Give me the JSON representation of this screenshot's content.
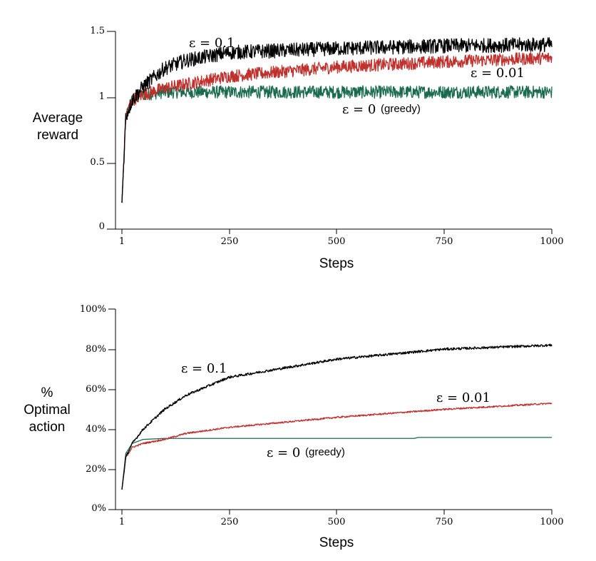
{
  "chart_data": [
    {
      "type": "line",
      "xlabel": "Steps",
      "ylabel": [
        "Average",
        "reward"
      ],
      "xlim": [
        1,
        1000
      ],
      "ylim": [
        0,
        1.5
      ],
      "xticks": [
        1,
        250,
        500,
        750,
        1000
      ],
      "xtick_labels": [
        "1",
        "250",
        "500",
        "750",
        "1000"
      ],
      "yticks": [
        0,
        0.5,
        1,
        1.5
      ],
      "ytick_labels": [
        "0",
        "0.5",
        "1",
        "1.5"
      ],
      "grid": false,
      "series": [
        {
          "name": "ε = 0",
          "suffix": "(greedy)",
          "color": "#1a6b4e",
          "x": [
            1,
            10,
            25,
            50,
            100,
            150,
            250,
            500,
            750,
            1000
          ],
          "y": [
            0.2,
            0.85,
            0.98,
            1.02,
            1.04,
            1.04,
            1.04,
            1.04,
            1.04,
            1.04
          ],
          "noise": 0.022
        },
        {
          "name": "ε = 0.01",
          "color": "#c0302c",
          "x": [
            1,
            10,
            25,
            50,
            100,
            150,
            250,
            500,
            750,
            1000
          ],
          "y": [
            0.2,
            0.85,
            0.98,
            1.02,
            1.07,
            1.1,
            1.16,
            1.23,
            1.27,
            1.3
          ],
          "noise": 0.022
        },
        {
          "name": "ε = 0.1",
          "color": "#000000",
          "x": [
            1,
            10,
            25,
            50,
            100,
            150,
            250,
            500,
            750,
            1000
          ],
          "y": [
            0.2,
            0.85,
            0.98,
            1.08,
            1.22,
            1.28,
            1.34,
            1.37,
            1.39,
            1.4
          ],
          "noise": 0.025
        }
      ]
    },
    {
      "type": "line",
      "xlabel": "Steps",
      "ylabel": [
        "%",
        "Optimal",
        "action"
      ],
      "xlim": [
        1,
        1000
      ],
      "ylim": [
        0,
        100
      ],
      "xticks": [
        1,
        250,
        500,
        750,
        1000
      ],
      "xtick_labels": [
        "1",
        "250",
        "500",
        "750",
        "1000"
      ],
      "yticks": [
        0,
        20,
        40,
        60,
        80,
        100
      ],
      "ytick_labels": [
        "0%",
        "20%",
        "40%",
        "60%",
        "80%",
        "100%"
      ],
      "grid": false,
      "series": [
        {
          "name": "ε = 0",
          "suffix": "(greedy)",
          "color": "#1a6b4e",
          "x": [
            1,
            10,
            25,
            50,
            100,
            150,
            250,
            500,
            680,
            690,
            750,
            1000
          ],
          "y": [
            10,
            28,
            33,
            35,
            35.5,
            35.5,
            35.5,
            35.5,
            35.5,
            36,
            36,
            36
          ],
          "noise": 0
        },
        {
          "name": "ε = 0.01",
          "color": "#c0302c",
          "x": [
            1,
            10,
            25,
            50,
            100,
            150,
            250,
            500,
            750,
            1000
          ],
          "y": [
            10,
            26,
            31,
            33,
            35,
            38,
            41,
            46,
            50,
            53
          ],
          "noise": 0.4
        },
        {
          "name": "ε = 0.1",
          "color": "#000000",
          "x": [
            1,
            10,
            25,
            50,
            100,
            150,
            250,
            500,
            750,
            1000
          ],
          "y": [
            10,
            26,
            33,
            40,
            50,
            57,
            66,
            75,
            80,
            82
          ],
          "noise": 0.6
        }
      ]
    }
  ]
}
